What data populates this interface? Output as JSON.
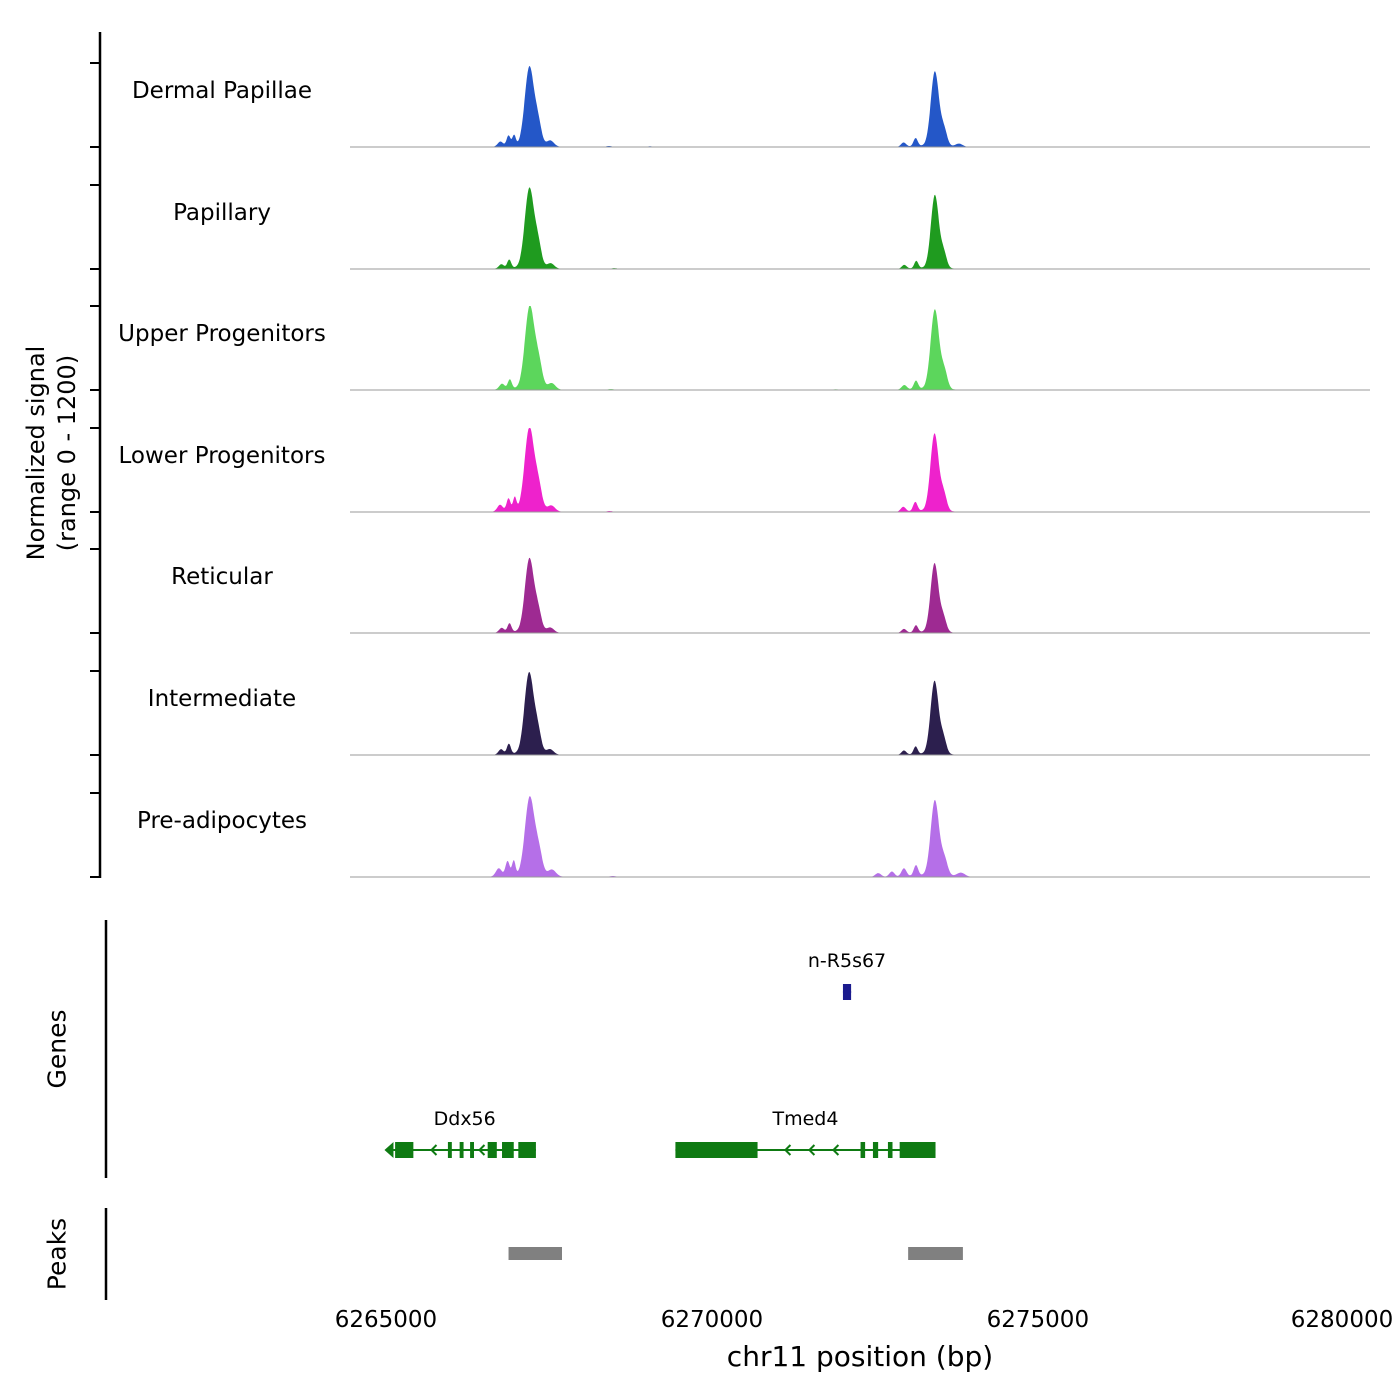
{
  "y_axis": {
    "label": "Normalized signal\n(range 0 - 1200)"
  },
  "x_axis": {
    "label": "chr11 position (bp)",
    "ticks": [
      6265000,
      6270000,
      6275000,
      6280000
    ],
    "tick_labels": [
      "6265000",
      "6270000",
      "6275000",
      "6280000"
    ]
  },
  "sections": {
    "genes_label": "Genes",
    "peaks_label": "Peaks"
  },
  "chart_data": {
    "type": "area",
    "title": "",
    "genome": {
      "chrom": "chr11",
      "xlim_bp": [
        6264448,
        6280095
      ]
    },
    "signal_range": [
      0,
      1200
    ],
    "grid": false,
    "tracks": [
      {
        "name": "Dermal Papillae",
        "color": "#2457c8",
        "components": [
          [
            6266755,
            40,
            70
          ],
          [
            6266880,
            30,
            150
          ],
          [
            6266965,
            26,
            150
          ],
          [
            6267200,
            70,
            1120
          ],
          [
            6267335,
            52,
            300
          ],
          [
            6267520,
            55,
            85
          ],
          [
            6267150,
            260,
            28
          ],
          [
            6268420,
            45,
            14
          ],
          [
            6269050,
            40,
            10
          ],
          [
            6272940,
            38,
            60
          ],
          [
            6273125,
            32,
            115
          ],
          [
            6273420,
            62,
            1060
          ],
          [
            6273560,
            48,
            230
          ],
          [
            6273350,
            240,
            22
          ],
          [
            6273790,
            55,
            45
          ]
        ]
      },
      {
        "name": "Papillary",
        "color": "#1f9b1f",
        "components": [
          [
            6266770,
            38,
            60
          ],
          [
            6266890,
            30,
            120
          ],
          [
            6267200,
            70,
            1130
          ],
          [
            6267335,
            52,
            310
          ],
          [
            6267525,
            55,
            75
          ],
          [
            6267150,
            260,
            26
          ],
          [
            6268500,
            45,
            12
          ],
          [
            6272950,
            36,
            55
          ],
          [
            6273135,
            30,
            105
          ],
          [
            6273420,
            60,
            1040
          ],
          [
            6273555,
            46,
            215
          ],
          [
            6273350,
            240,
            20
          ]
        ]
      },
      {
        "name": "Upper Progenitors",
        "color": "#5cd65c",
        "components": [
          [
            6266780,
            40,
            80
          ],
          [
            6266900,
            30,
            135
          ],
          [
            6267205,
            72,
            1170
          ],
          [
            6267345,
            55,
            340
          ],
          [
            6267540,
            58,
            90
          ],
          [
            6267150,
            260,
            30
          ],
          [
            6268450,
            45,
            13
          ],
          [
            6271900,
            50,
            10
          ],
          [
            6272950,
            40,
            65
          ],
          [
            6273130,
            33,
            120
          ],
          [
            6273420,
            64,
            1130
          ],
          [
            6273565,
            48,
            250
          ],
          [
            6273350,
            240,
            24
          ]
        ]
      },
      {
        "name": "Lower Progenitors",
        "color": "#ee22cc",
        "components": [
          [
            6266750,
            42,
            95
          ],
          [
            6266880,
            30,
            180
          ],
          [
            6266975,
            26,
            190
          ],
          [
            6267200,
            72,
            1180
          ],
          [
            6267340,
            54,
            330
          ],
          [
            6267535,
            58,
            85
          ],
          [
            6267150,
            260,
            30
          ],
          [
            6268430,
            45,
            14
          ],
          [
            6272935,
            38,
            70
          ],
          [
            6273120,
            33,
            130
          ],
          [
            6273415,
            62,
            1100
          ],
          [
            6273555,
            47,
            240
          ],
          [
            6273350,
            240,
            24
          ]
        ]
      },
      {
        "name": "Reticular",
        "color": "#9e2a92",
        "components": [
          [
            6266775,
            38,
            65
          ],
          [
            6266895,
            30,
            125
          ],
          [
            6267200,
            68,
            1040
          ],
          [
            6267335,
            52,
            280
          ],
          [
            6267520,
            55,
            70
          ],
          [
            6267150,
            260,
            26
          ],
          [
            6272945,
            36,
            55
          ],
          [
            6273130,
            31,
            100
          ],
          [
            6273415,
            60,
            980
          ],
          [
            6273550,
            46,
            205
          ],
          [
            6273350,
            240,
            20
          ]
        ]
      },
      {
        "name": "Intermediate",
        "color": "#2c1f4e",
        "components": [
          [
            6266765,
            38,
            75
          ],
          [
            6266885,
            30,
            145
          ],
          [
            6267195,
            70,
            1150
          ],
          [
            6267330,
            52,
            300
          ],
          [
            6267515,
            55,
            75
          ],
          [
            6267150,
            260,
            28
          ],
          [
            6272945,
            36,
            60
          ],
          [
            6273125,
            31,
            110
          ],
          [
            6273415,
            61,
            1040
          ],
          [
            6273550,
            46,
            220
          ],
          [
            6273350,
            240,
            22
          ]
        ]
      },
      {
        "name": "Pre-adipocytes",
        "color": "#b56fe8",
        "components": [
          [
            6266730,
            44,
            115
          ],
          [
            6266865,
            32,
            210
          ],
          [
            6266960,
            26,
            210
          ],
          [
            6267205,
            72,
            1110
          ],
          [
            6267345,
            55,
            320
          ],
          [
            6267545,
            60,
            95
          ],
          [
            6267150,
            280,
            34
          ],
          [
            6268480,
            50,
            14
          ],
          [
            6279600,
            60,
            8
          ],
          [
            6272550,
            45,
            55
          ],
          [
            6272760,
            40,
            75
          ],
          [
            6272945,
            38,
            115
          ],
          [
            6273130,
            33,
            150
          ],
          [
            6273420,
            63,
            1070
          ],
          [
            6273565,
            50,
            235
          ],
          [
            6273360,
            280,
            30
          ],
          [
            6273820,
            60,
            55
          ]
        ]
      }
    ],
    "genes": [
      {
        "name": "n-R5s67",
        "start": 6272010,
        "end": 6272135,
        "strand": "-",
        "color": "#1b1b8e",
        "row": 0,
        "tss_arrow": false,
        "exons": [
          [
            6272010,
            6272135
          ]
        ]
      },
      {
        "name": "Ddx56",
        "start": 6265115,
        "end": 6267300,
        "strand": "-",
        "color": "#0e7a12",
        "row": 1,
        "tss_arrow": true,
        "exons": [
          [
            6265140,
            6265420
          ],
          [
            6265950,
            6266010
          ],
          [
            6266130,
            6266190
          ],
          [
            6266290,
            6266350
          ],
          [
            6266560,
            6266700
          ],
          [
            6266780,
            6266960
          ],
          [
            6267030,
            6267300
          ]
        ]
      },
      {
        "name": "Tmed4",
        "start": 6269440,
        "end": 6273430,
        "strand": "-",
        "color": "#0e7a12",
        "row": 1,
        "tss_arrow": false,
        "exons": [
          [
            6269440,
            6270700
          ],
          [
            6272280,
            6272350
          ],
          [
            6272470,
            6272550
          ],
          [
            6272700,
            6272770
          ],
          [
            6272880,
            6273430
          ]
        ]
      }
    ],
    "peak_calls": [
      {
        "start": 6266880,
        "end": 6267700
      },
      {
        "start": 6273010,
        "end": 6273850
      }
    ],
    "peak_color": "#808080"
  }
}
